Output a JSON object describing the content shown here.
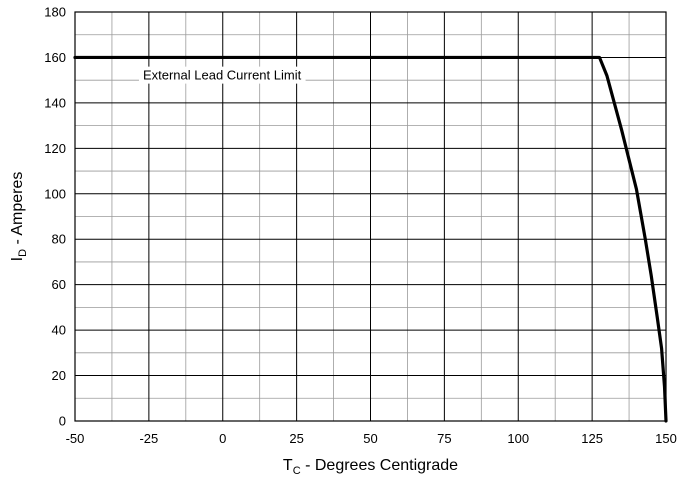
{
  "chart_data": {
    "type": "line",
    "xlabel": {
      "main": "T",
      "sub": "C",
      "rest": " - Degrees Centigrade"
    },
    "ylabel": {
      "main": "I",
      "sub": "D",
      "rest": " - Amperes"
    },
    "xlim": [
      -50,
      150
    ],
    "ylim": [
      0,
      180
    ],
    "x_ticks": [
      "-50",
      "-25",
      "0",
      "25",
      "50",
      "75",
      "100",
      "125",
      "150"
    ],
    "y_ticks": [
      "0",
      "20",
      "40",
      "60",
      "80",
      "100",
      "120",
      "140",
      "160",
      "180"
    ],
    "grid": true,
    "series": [
      {
        "x": [
          -50,
          127.5,
          130,
          135,
          140,
          143,
          145,
          147,
          148.5,
          149.5,
          150
        ],
        "y": [
          160,
          160,
          152,
          128,
          102,
          80,
          64,
          46,
          32,
          15,
          0
        ]
      }
    ],
    "annotations": [
      {
        "text": "External Lead Current Limit",
        "x": -27,
        "y": 152
      }
    ]
  }
}
